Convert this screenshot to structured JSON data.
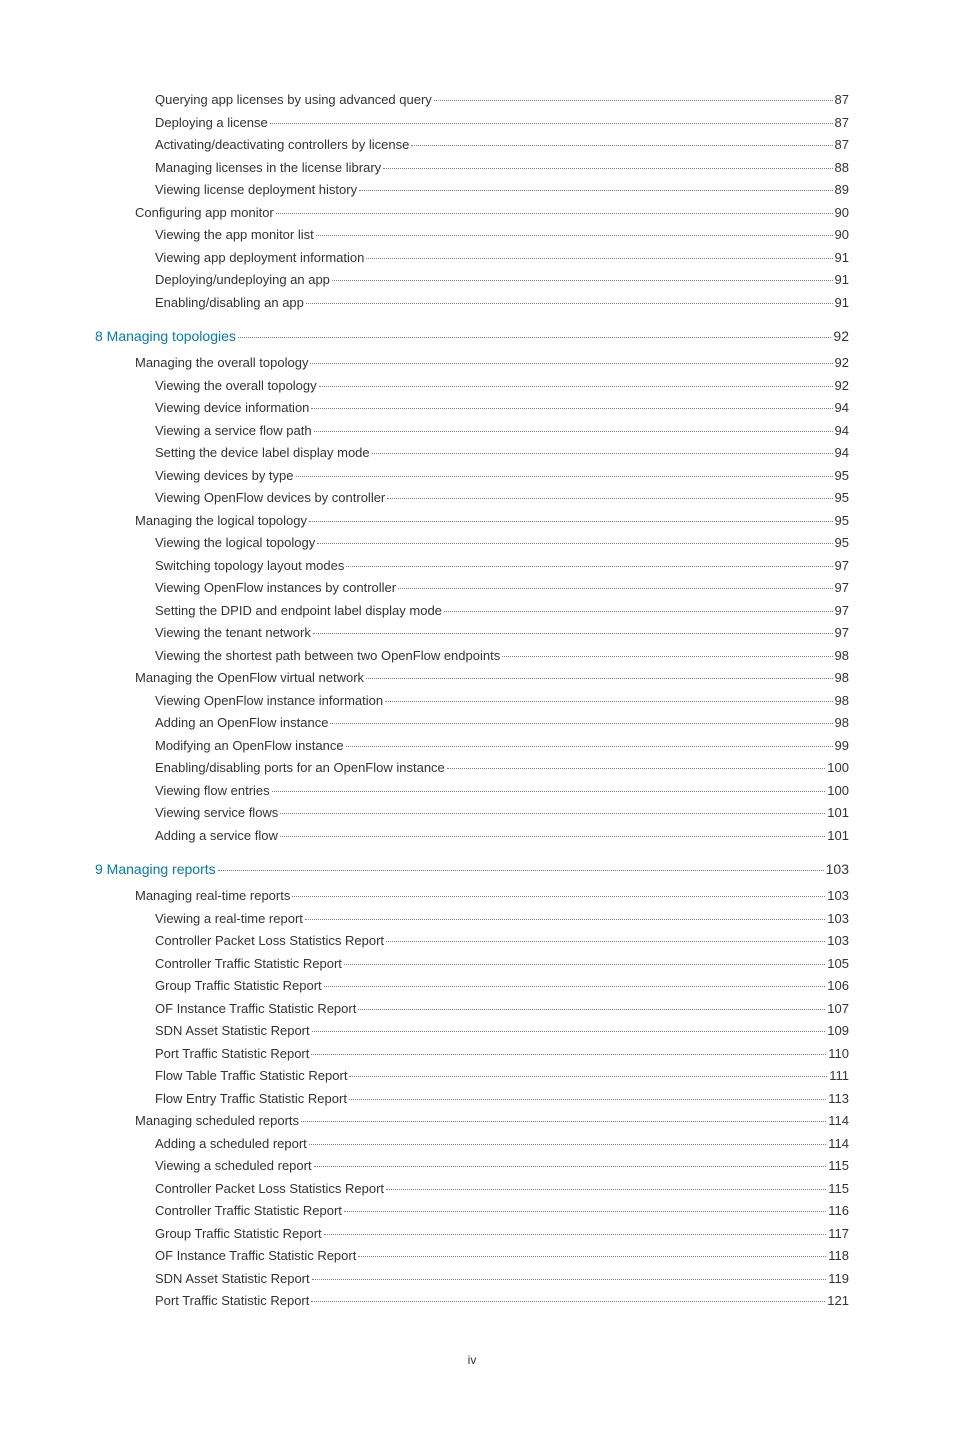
{
  "pageNumber": "iv",
  "colors": {
    "text": "#333333",
    "chapter": "#007cb0",
    "dots": "#808080",
    "background": "#ffffff"
  },
  "typography": {
    "bodyFontSize": 13,
    "chapterFontSize": 14,
    "pageNumFontSize": 12,
    "fontFamily": "Arial, Helvetica, sans-serif"
  },
  "entries": [
    {
      "indent": 2,
      "label": "Querying app licenses by using advanced query",
      "page": "87"
    },
    {
      "indent": 2,
      "label": "Deploying a license",
      "page": "87"
    },
    {
      "indent": 2,
      "label": "Activating/deactivating controllers by license",
      "page": "87"
    },
    {
      "indent": 2,
      "label": "Managing licenses in the license library",
      "page": "88"
    },
    {
      "indent": 2,
      "label": "Viewing license deployment history",
      "page": "89"
    },
    {
      "indent": 1,
      "label": "Configuring app monitor",
      "page": "90"
    },
    {
      "indent": 2,
      "label": "Viewing the app monitor list",
      "page": "90"
    },
    {
      "indent": 2,
      "label": "Viewing app deployment information",
      "page": "91"
    },
    {
      "indent": 2,
      "label": "Deploying/undeploying an app",
      "page": "91"
    },
    {
      "indent": 2,
      "label": "Enabling/disabling an app",
      "page": "91"
    },
    {
      "indent": 0,
      "chapter": true,
      "label": "8 Managing topologies",
      "page": "92"
    },
    {
      "indent": 1,
      "label": "Managing the overall topology",
      "page": "92"
    },
    {
      "indent": 2,
      "label": "Viewing the overall topology",
      "page": "92"
    },
    {
      "indent": 2,
      "label": "Viewing device information",
      "page": "94"
    },
    {
      "indent": 2,
      "label": "Viewing a service flow path",
      "page": "94"
    },
    {
      "indent": 2,
      "label": "Setting the device label display mode",
      "page": "94"
    },
    {
      "indent": 2,
      "label": "Viewing devices by type",
      "page": "95"
    },
    {
      "indent": 2,
      "label": "Viewing OpenFlow devices by controller",
      "page": "95"
    },
    {
      "indent": 1,
      "label": "Managing the logical topology",
      "page": "95"
    },
    {
      "indent": 2,
      "label": "Viewing the logical topology",
      "page": "95"
    },
    {
      "indent": 2,
      "label": "Switching topology layout modes",
      "page": "97"
    },
    {
      "indent": 2,
      "label": "Viewing OpenFlow instances by controller",
      "page": "97"
    },
    {
      "indent": 2,
      "label": "Setting the DPID and endpoint label display mode",
      "page": "97"
    },
    {
      "indent": 2,
      "label": "Viewing the tenant network",
      "page": "97"
    },
    {
      "indent": 2,
      "label": "Viewing the shortest path between two OpenFlow endpoints",
      "page": "98"
    },
    {
      "indent": 1,
      "label": "Managing the OpenFlow virtual network",
      "page": "98"
    },
    {
      "indent": 2,
      "label": "Viewing OpenFlow instance information",
      "page": "98"
    },
    {
      "indent": 2,
      "label": "Adding an OpenFlow instance",
      "page": "98"
    },
    {
      "indent": 2,
      "label": "Modifying an OpenFlow instance",
      "page": "99"
    },
    {
      "indent": 2,
      "label": "Enabling/disabling ports for an OpenFlow instance",
      "page": "100"
    },
    {
      "indent": 2,
      "label": "Viewing flow entries",
      "page": "100"
    },
    {
      "indent": 2,
      "label": "Viewing service flows",
      "page": "101"
    },
    {
      "indent": 2,
      "label": "Adding a service flow",
      "page": "101"
    },
    {
      "indent": 0,
      "chapter": true,
      "label": "9 Managing reports",
      "page": "103"
    },
    {
      "indent": 1,
      "label": "Managing real-time reports",
      "page": "103"
    },
    {
      "indent": 2,
      "label": "Viewing a real-time report",
      "page": "103"
    },
    {
      "indent": 2,
      "label": "Controller Packet Loss Statistics Report",
      "page": "103"
    },
    {
      "indent": 2,
      "label": "Controller Traffic Statistic Report",
      "page": "105"
    },
    {
      "indent": 2,
      "label": "Group Traffic Statistic Report",
      "page": "106"
    },
    {
      "indent": 2,
      "label": "OF Instance Traffic Statistic Report",
      "page": "107"
    },
    {
      "indent": 2,
      "label": "SDN Asset Statistic Report",
      "page": "109"
    },
    {
      "indent": 2,
      "label": "Port Traffic Statistic Report",
      "page": "110"
    },
    {
      "indent": 2,
      "label": "Flow Table Traffic Statistic Report",
      "page": "111"
    },
    {
      "indent": 2,
      "label": "Flow Entry Traffic Statistic Report",
      "page": "113"
    },
    {
      "indent": 1,
      "label": "Managing scheduled reports",
      "page": "114"
    },
    {
      "indent": 2,
      "label": "Adding a scheduled report",
      "page": "114"
    },
    {
      "indent": 2,
      "label": "Viewing a scheduled report",
      "page": "115"
    },
    {
      "indent": 2,
      "label": "Controller Packet Loss Statistics Report",
      "page": "115"
    },
    {
      "indent": 2,
      "label": "Controller Traffic Statistic Report",
      "page": "116"
    },
    {
      "indent": 2,
      "label": "Group Traffic Statistic Report",
      "page": "117"
    },
    {
      "indent": 2,
      "label": "OF Instance Traffic Statistic Report",
      "page": "118"
    },
    {
      "indent": 2,
      "label": "SDN Asset Statistic Report",
      "page": "119"
    },
    {
      "indent": 2,
      "label": "Port Traffic Statistic Report",
      "page": "121"
    }
  ]
}
